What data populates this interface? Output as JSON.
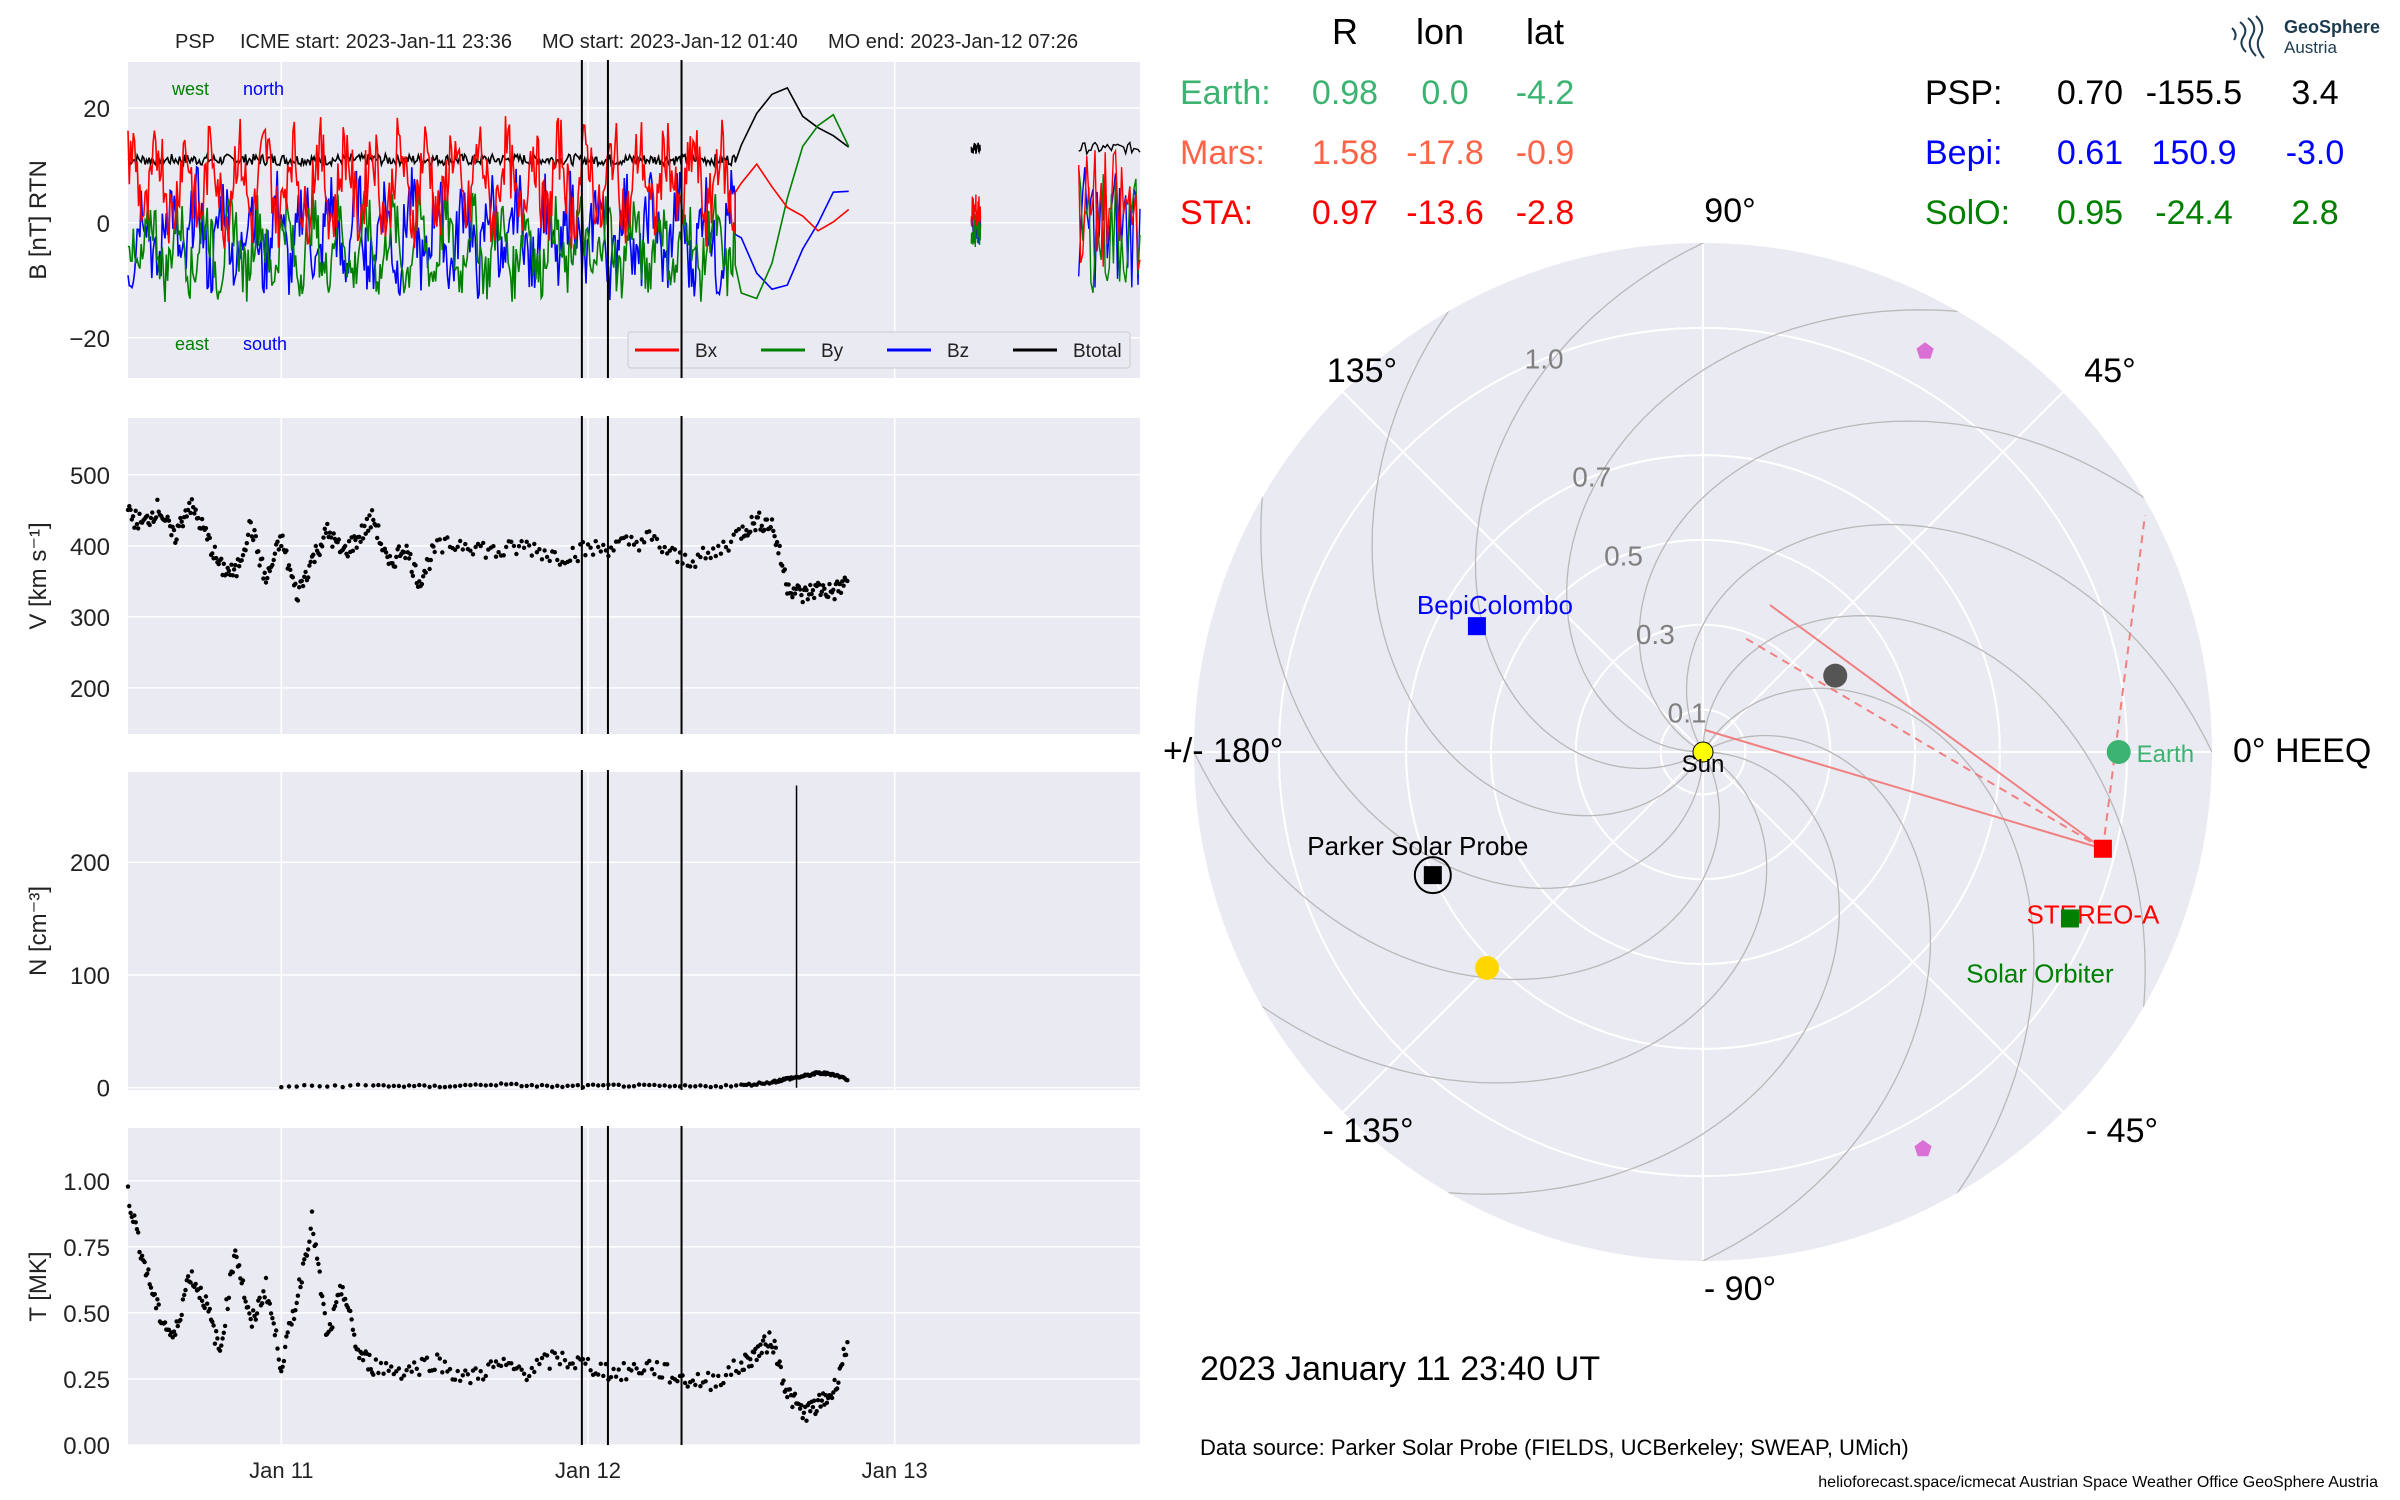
{
  "page": {
    "title_line": {
      "spacecraft": "PSP",
      "icme_start": "ICME start: 2023-Jan-11 23:36",
      "mo_start": "MO start: 2023-Jan-12 01:40",
      "mo_end": "MO end: 2023-Jan-12 07:26"
    },
    "date_label": "2023 January 11  23:40 UT",
    "data_source": "Data source: Parker Solar Probe (FIELDS, UCBerkeley; SWEAP, UMich)",
    "footer": "helioforecast.space/icmecat   Austrian Space Weather Office   GeoSphere Austria",
    "logo": {
      "line1": "GeoSphere",
      "line2": "Austria",
      "icon": "geosphere-logo-icon"
    }
  },
  "colors": {
    "panel_bg": "#eaeaf2",
    "grid": "#ffffff",
    "bx": "#ff0000",
    "by": "#008000",
    "bz": "#0000ff",
    "btotal": "#000000",
    "earth": "#3cb371",
    "mars": "#ff6347",
    "sta": "#ff0000",
    "psp": "#000000",
    "bepi": "#0000ff",
    "solo": "#008000",
    "sun": "#ffff00",
    "venus": "#ffd700",
    "mercury": "#555555",
    "pentagon": "#da70d6"
  },
  "table": {
    "headers": [
      "R",
      "lon",
      "lat"
    ],
    "rows_left": [
      {
        "name": "Earth:",
        "r": "0.98",
        "lon": "0.0",
        "lat": "-4.2",
        "color": "#3cb371"
      },
      {
        "name": "Mars:",
        "r": "1.58",
        "lon": "-17.8",
        "lat": "-0.9",
        "color": "#ff6347"
      },
      {
        "name": "STA:",
        "r": "0.97",
        "lon": "-13.6",
        "lat": "-2.8",
        "color": "#ff0000"
      }
    ],
    "rows_right": [
      {
        "name": "PSP:",
        "r": "0.70",
        "lon": "-155.5",
        "lat": "3.4",
        "color": "#000000"
      },
      {
        "name": "Bepi:",
        "r": "0.61",
        "lon": "150.9",
        "lat": "-3.0",
        "color": "#0000ff"
      },
      {
        "name": "SolO:",
        "r": "0.95",
        "lon": "-24.4",
        "lat": "2.8",
        "color": "#008000"
      }
    ]
  },
  "chart_data": [
    {
      "type": "line",
      "panel": "magnetic-field",
      "ylabel": "B [nT] RTN",
      "ylim": [
        -27,
        28
      ],
      "yticks": [
        -20,
        0,
        20
      ],
      "ytick_labels": [
        "−20",
        "0",
        "20"
      ],
      "grid": true,
      "legend_placement": "lower-right",
      "annotations": {
        "west": "west",
        "north": "north",
        "east": "east",
        "south": "south"
      },
      "series": [
        {
          "name": "Bx",
          "color": "#ff0000",
          "mean": 7,
          "amp": 6
        },
        {
          "name": "By",
          "color": "#008000",
          "mean": -4,
          "amp": 5
        },
        {
          "name": "Bz",
          "color": "#0000ff",
          "mean": -2,
          "amp": 6
        },
        {
          "name": "Btotal",
          "color": "#000000",
          "mean": 11,
          "amp": 1
        }
      ],
      "sheath_profile": {
        "x": [
          1.98,
          2.0,
          2.05,
          2.1,
          2.15,
          2.2,
          2.25,
          2.3,
          2.35
        ],
        "Btotal": [
          12,
          15,
          20,
          23,
          22,
          20,
          18,
          16,
          13
        ],
        "Bx": [
          5,
          8,
          10,
          6,
          3,
          0,
          -2,
          0,
          2
        ],
        "By": [
          -8,
          -12,
          -14,
          -6,
          3,
          12,
          16,
          18,
          14
        ],
        "Bz": [
          -3,
          -4,
          -8,
          -12,
          -10,
          -6,
          0,
          4,
          6
        ]
      }
    },
    {
      "type": "scatter",
      "panel": "speed",
      "ylabel": "V [km s⁻¹]",
      "ylim": [
        135,
        580
      ],
      "yticks": [
        200,
        300,
        400,
        500
      ],
      "grid": true,
      "points": [
        [
          0.0,
          445
        ],
        [
          0.05,
          430
        ],
        [
          0.1,
          455
        ],
        [
          0.15,
          410
        ],
        [
          0.2,
          460
        ],
        [
          0.25,
          420
        ],
        [
          0.3,
          370
        ],
        [
          0.35,
          360
        ],
        [
          0.4,
          430
        ],
        [
          0.45,
          350
        ],
        [
          0.5,
          410
        ],
        [
          0.55,
          330
        ],
        [
          0.6,
          380
        ],
        [
          0.65,
          420
        ],
        [
          0.7,
          390
        ],
        [
          0.75,
          410
        ],
        [
          0.8,
          440
        ],
        [
          0.85,
          370
        ],
        [
          0.9,
          400
        ],
        [
          0.95,
          350
        ],
        [
          1.0,
          395
        ],
        [
          1.1,
          405
        ],
        [
          1.2,
          390
        ],
        [
          1.3,
          400
        ],
        [
          1.4,
          385
        ],
        [
          1.5,
          395
        ],
        [
          1.6,
          400
        ],
        [
          1.7,
          410
        ],
        [
          1.8,
          380
        ],
        [
          1.9,
          385
        ],
        [
          2.0,
          420
        ],
        [
          2.05,
          435
        ],
        [
          2.1,
          430
        ],
        [
          2.15,
          345
        ],
        [
          2.2,
          330
        ],
        [
          2.25,
          340
        ],
        [
          2.3,
          335
        ],
        [
          2.35,
          350
        ]
      ]
    },
    {
      "type": "scatter",
      "panel": "density",
      "ylabel": "N [cm⁻³]",
      "ylim": [
        -2,
        280
      ],
      "yticks": [
        0,
        100,
        200
      ],
      "grid": true,
      "points": [
        [
          0.5,
          1
        ],
        [
          0.8,
          2
        ],
        [
          1.0,
          1
        ],
        [
          1.2,
          3
        ],
        [
          1.4,
          1
        ],
        [
          1.6,
          2
        ],
        [
          1.8,
          1
        ],
        [
          2.0,
          2
        ],
        [
          2.1,
          5
        ],
        [
          2.15,
          8
        ],
        [
          2.2,
          10
        ],
        [
          2.25,
          13
        ],
        [
          2.3,
          12
        ],
        [
          2.35,
          7
        ]
      ],
      "spike": {
        "x": 2.18,
        "y": 268
      }
    },
    {
      "type": "scatter",
      "panel": "temperature",
      "ylabel": "T [MK]",
      "ylim": [
        0,
        1.2
      ],
      "yticks": [
        0.0,
        0.25,
        0.5,
        0.75,
        1.0
      ],
      "ytick_labels": [
        "0.00",
        "0.25",
        "0.50",
        "0.75",
        "1.00"
      ],
      "xticks": [
        0.5,
        1.5,
        2.5
      ],
      "xtick_labels": [
        "Jan 11",
        "Jan 12",
        "Jan 13"
      ],
      "xlim": [
        0.0,
        3.3
      ],
      "grid": true,
      "points": [
        [
          0.0,
          0.95
        ],
        [
          0.05,
          0.7
        ],
        [
          0.1,
          0.5
        ],
        [
          0.15,
          0.4
        ],
        [
          0.2,
          0.65
        ],
        [
          0.25,
          0.55
        ],
        [
          0.3,
          0.35
        ],
        [
          0.35,
          0.75
        ],
        [
          0.4,
          0.45
        ],
        [
          0.45,
          0.6
        ],
        [
          0.5,
          0.3
        ],
        [
          0.55,
          0.55
        ],
        [
          0.6,
          0.85
        ],
        [
          0.65,
          0.4
        ],
        [
          0.7,
          0.6
        ],
        [
          0.75,
          0.35
        ],
        [
          0.8,
          0.3
        ],
        [
          0.9,
          0.28
        ],
        [
          1.0,
          0.32
        ],
        [
          1.1,
          0.25
        ],
        [
          1.2,
          0.3
        ],
        [
          1.3,
          0.28
        ],
        [
          1.4,
          0.33
        ],
        [
          1.5,
          0.3
        ],
        [
          1.6,
          0.27
        ],
        [
          1.7,
          0.3
        ],
        [
          1.8,
          0.25
        ],
        [
          1.9,
          0.24
        ],
        [
          2.0,
          0.3
        ],
        [
          2.05,
          0.35
        ],
        [
          2.1,
          0.4
        ],
        [
          2.15,
          0.2
        ],
        [
          2.2,
          0.12
        ],
        [
          2.25,
          0.15
        ],
        [
          2.3,
          0.2
        ],
        [
          2.35,
          0.4
        ]
      ]
    }
  ],
  "event_markers_x": [
    1.48,
    1.565,
    1.805
  ],
  "polar": {
    "type": "scatter",
    "rticks": [
      0.1,
      0.3,
      0.5,
      0.7,
      1.0
    ],
    "rtick_labels": [
      "0.1",
      "0.3",
      "0.5",
      "0.7",
      "1.0"
    ],
    "rmax": 1.2,
    "angle_labels": {
      "a0": "0° HEEQ",
      "a45": "45°",
      "a90": "90°",
      "a135": "135°",
      "a180": "+/- 180°",
      "am135": "- 135°",
      "am90": "- 90°",
      "am45": "- 45°"
    },
    "objects": [
      {
        "name": "Sun",
        "label": "Sun",
        "lon": 0,
        "r": 0.0,
        "marker": "circle",
        "color": "#ffff00"
      },
      {
        "name": "Earth",
        "label": "Earth",
        "lon": 0.0,
        "r": 0.98,
        "marker": "circle",
        "color": "#3cb371"
      },
      {
        "name": "STEREO-A",
        "label": "STEREO-A",
        "lon": -13.6,
        "r": 0.97,
        "marker": "square",
        "color": "#ff0000"
      },
      {
        "name": "Solar Orbiter",
        "label": "Solar Orbiter",
        "lon": -24.4,
        "r": 0.95,
        "marker": "square",
        "color": "#008000"
      },
      {
        "name": "BepiColombo",
        "label": "BepiColombo",
        "lon": 150.9,
        "r": 0.61,
        "marker": "square",
        "color": "#0000ff"
      },
      {
        "name": "Parker Solar Probe",
        "label": "Parker Solar Probe",
        "lon": -155.5,
        "r": 0.7,
        "marker": "square-ringed",
        "color": "#000000"
      },
      {
        "name": "Venus",
        "label": "",
        "lon": -135,
        "r": 0.72,
        "marker": "circle",
        "color": "#ffd700"
      },
      {
        "name": "Mercury",
        "label": "",
        "lon": 30,
        "r": 0.36,
        "marker": "circle",
        "color": "#555555"
      },
      {
        "name": "Mars-up",
        "label": "",
        "lon": 61,
        "r": 1.08,
        "marker": "pentagon",
        "color": "#da70d6"
      },
      {
        "name": "Mars-down",
        "label": "",
        "lon": -61,
        "r": 1.07,
        "marker": "pentagon",
        "color": "#da70d6"
      }
    ]
  }
}
